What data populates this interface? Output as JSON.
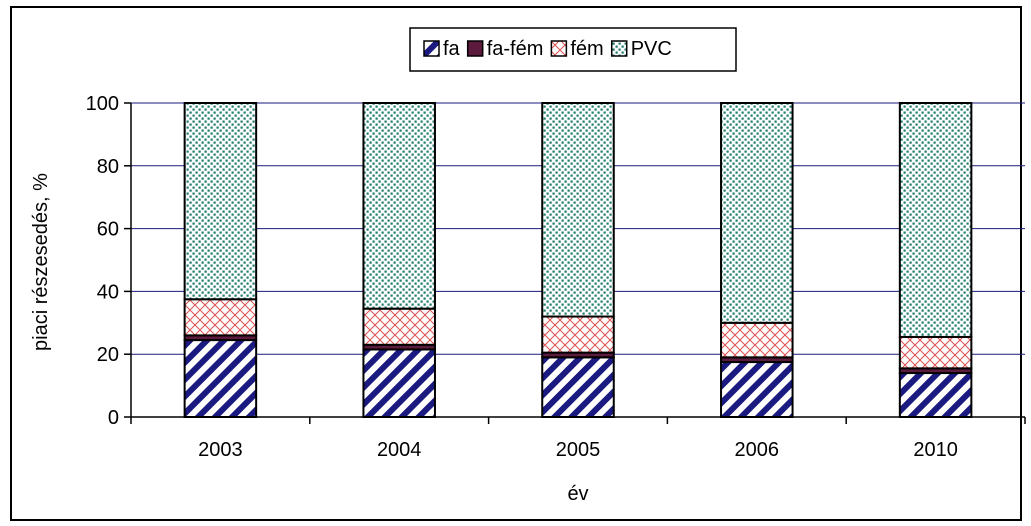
{
  "chart_data": {
    "type": "bar",
    "stacked": true,
    "categories": [
      "2003",
      "2004",
      "2005",
      "2006",
      "2010"
    ],
    "series": [
      {
        "name": "fa",
        "values": [
          24.5,
          21.5,
          19.0,
          17.5,
          14.0
        ],
        "pattern": "diagonal-stripes",
        "color": "#1a1a80"
      },
      {
        "name": "fa-fém",
        "values": [
          1.5,
          1.5,
          1.5,
          1.5,
          1.5
        ],
        "pattern": "solid",
        "color": "#5c1a3c"
      },
      {
        "name": "fém",
        "values": [
          11.5,
          11.5,
          11.5,
          11.0,
          10.0
        ],
        "pattern": "crosshatch",
        "color": "#e05050"
      },
      {
        "name": "PVC",
        "values": [
          62.5,
          65.5,
          68.0,
          70.0,
          74.5
        ],
        "pattern": "dots",
        "color": "#1f7a6a"
      }
    ],
    "title": "",
    "xlabel": "év",
    "ylabel": "piaci részesedés, %",
    "ylim": [
      0,
      100
    ],
    "yticks": [
      "0",
      "20",
      "40",
      "60",
      "80",
      "100"
    ],
    "grid": true,
    "legend_position": "top"
  }
}
